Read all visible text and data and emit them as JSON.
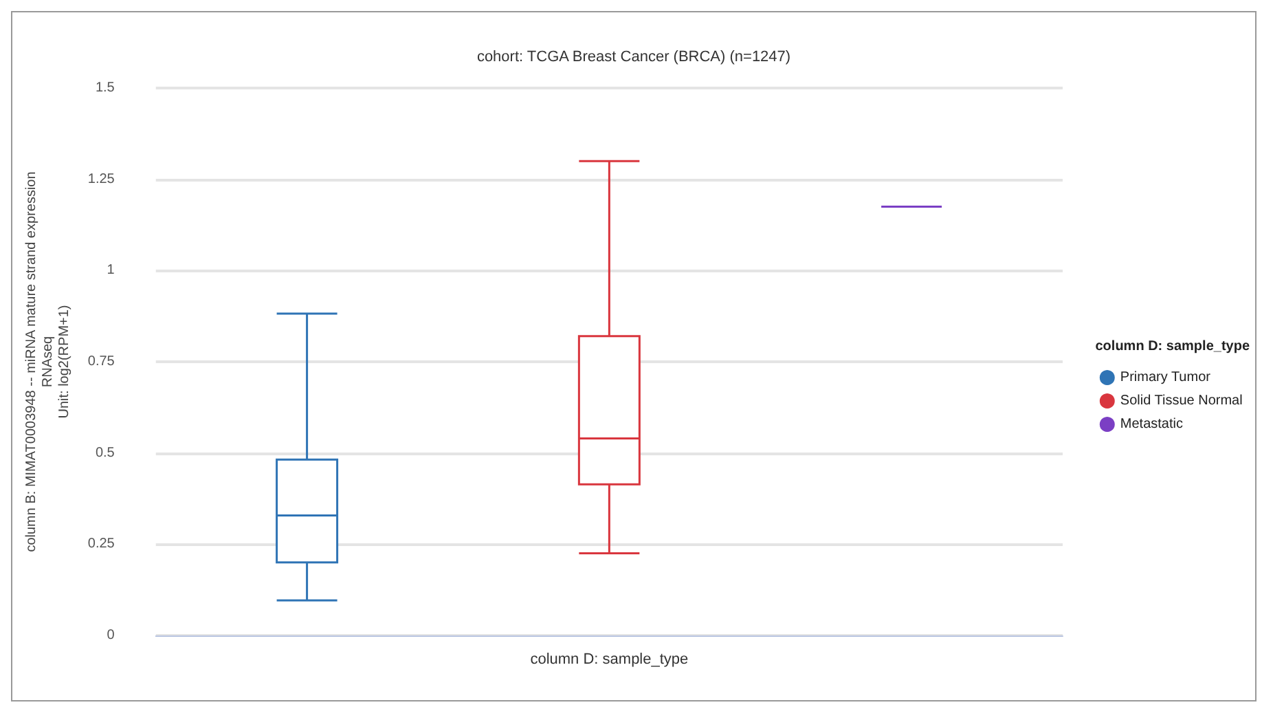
{
  "chart_data": {
    "type": "box",
    "title": "cohort: TCGA Breast Cancer (BRCA) (n=1247)",
    "xlabel": "column D: sample_type",
    "ylabel": "column B: MIMAT0003948 -- miRNA mature strand expression\nRNAseq\nUnit: log2(RPM+1)",
    "legend_title": "column D: sample_type",
    "categories": [
      null,
      null,
      null
    ],
    "series": [
      {
        "name": "Primary Tumor",
        "color": "#2f74b5",
        "boxes": [
          {
            "low": 0.096,
            "q1": 0.2,
            "median": 0.329,
            "q3": 0.482,
            "high": 0.882
          },
          null,
          null
        ]
      },
      {
        "name": "Solid Tissue Normal",
        "color": "#d9363e",
        "boxes": [
          null,
          {
            "low": 0.225,
            "q1": 0.414,
            "median": 0.54,
            "q3": 0.82,
            "high": 1.3
          },
          null
        ]
      },
      {
        "name": "Metastatic",
        "color": "#7b3fc4",
        "boxes": [
          null,
          null,
          {
            "low": 1.175,
            "q1": 1.175,
            "median": 1.175,
            "q3": 1.175,
            "high": 1.175
          }
        ]
      }
    ],
    "ylim": [
      0,
      1.5
    ],
    "yticks": [
      0,
      0.25,
      0.5,
      0.75,
      1,
      1.25,
      1.5
    ],
    "grid": "y",
    "legend": "right"
  }
}
